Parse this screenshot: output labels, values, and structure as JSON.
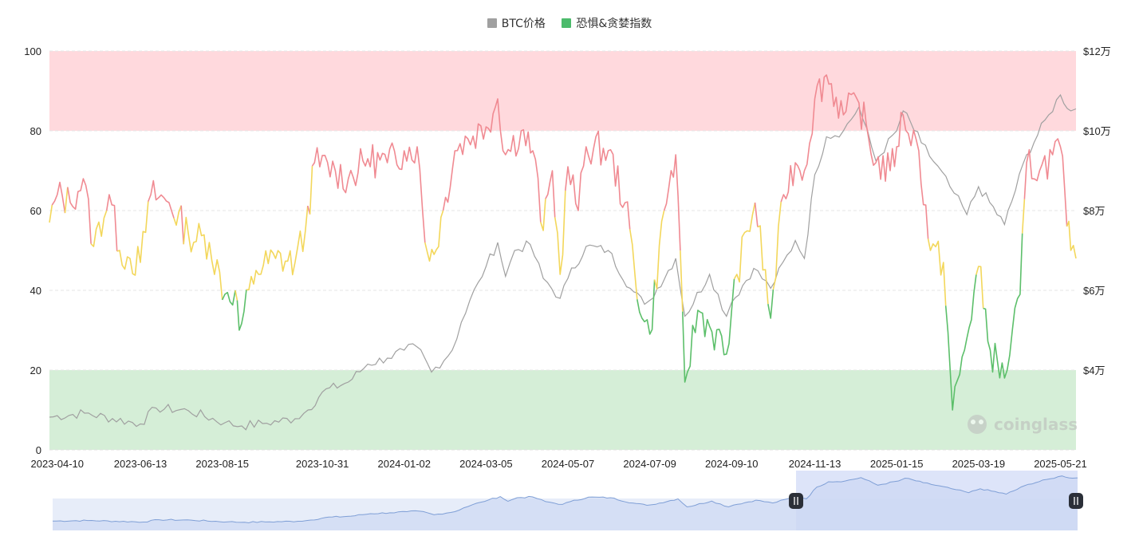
{
  "chart_data": {
    "type": "line",
    "title": "",
    "legend": {
      "placement": "top-center",
      "items": [
        {
          "name": "BTC价格",
          "color": "#a0a0a0"
        },
        {
          "name": "恐惧&贪婪指数",
          "color": "#4cbb6c"
        }
      ]
    },
    "x_tick_labels": [
      "2023-04-10",
      "2023-06-13",
      "2023-08-15",
      "2023-10-31",
      "2024-01-02",
      "2024-03-05",
      "2024-05-07",
      "2024-07-09",
      "2024-09-10",
      "2024-11-13",
      "2025-01-15",
      "2025-03-19",
      "2025-05-21"
    ],
    "x_range": [
      "2023-04-04",
      "2025-06-02"
    ],
    "y_left": {
      "min": 0,
      "max": 100,
      "ticks": [
        "0",
        "20",
        "40",
        "60",
        "80",
        "100"
      ]
    },
    "y_right": {
      "min": 20000,
      "max": 120000,
      "ticks": [
        {
          "value": 40000,
          "label": "$4万"
        },
        {
          "value": 60000,
          "label": "$6万"
        },
        {
          "value": 80000,
          "label": "$8万"
        },
        {
          "value": 100000,
          "label": "$10万"
        },
        {
          "value": 120000,
          "label": "$12万"
        }
      ]
    },
    "zones": [
      {
        "from": 80,
        "to": 100,
        "color": "#ffd9dd"
      },
      {
        "from": 0,
        "to": 20,
        "color": "#d5eed7"
      }
    ],
    "index_colors": {
      "greed": "#f08a92",
      "neutral": "#f3d75b",
      "fear": "#5cbf6a"
    },
    "series": [
      {
        "name": "BTC价格",
        "color": "#a0a0a0",
        "axis": "right",
        "points": [
          [
            "2023-04-04",
            28200
          ],
          [
            "2023-05-01",
            29200
          ],
          [
            "2023-06-13",
            26500
          ],
          [
            "2023-06-25",
            30500
          ],
          [
            "2023-07-20",
            29800
          ],
          [
            "2023-08-17",
            26800
          ],
          [
            "2023-08-30",
            26000
          ],
          [
            "2023-09-15",
            26600
          ],
          [
            "2023-10-10",
            27800
          ],
          [
            "2023-10-20",
            30000
          ],
          [
            "2023-10-31",
            34500
          ],
          [
            "2023-11-20",
            37000
          ],
          [
            "2023-12-05",
            41500
          ],
          [
            "2023-12-20",
            43000
          ],
          [
            "2024-01-02",
            45000
          ],
          [
            "2024-01-12",
            45800
          ],
          [
            "2024-01-23",
            39500
          ],
          [
            "2024-02-08",
            45000
          ],
          [
            "2024-02-15",
            52000
          ],
          [
            "2024-02-28",
            62000
          ],
          [
            "2024-03-05",
            66000
          ],
          [
            "2024-03-14",
            72000
          ],
          [
            "2024-03-20",
            63500
          ],
          [
            "2024-03-27",
            70000
          ],
          [
            "2024-04-08",
            71500
          ],
          [
            "2024-04-18",
            63000
          ],
          [
            "2024-05-01",
            58000
          ],
          [
            "2024-05-07",
            63000
          ],
          [
            "2024-05-21",
            71000
          ],
          [
            "2024-06-07",
            70000
          ],
          [
            "2024-06-24",
            60500
          ],
          [
            "2024-07-05",
            56500
          ],
          [
            "2024-07-09",
            57500
          ],
          [
            "2024-07-29",
            68000
          ],
          [
            "2024-08-05",
            53500
          ],
          [
            "2024-08-24",
            64000
          ],
          [
            "2024-09-06",
            53500
          ],
          [
            "2024-09-10",
            57000
          ],
          [
            "2024-09-27",
            65500
          ],
          [
            "2024-10-10",
            60500
          ],
          [
            "2024-10-29",
            72500
          ],
          [
            "2024-11-05",
            68000
          ],
          [
            "2024-11-13",
            89000
          ],
          [
            "2024-11-22",
            98500
          ],
          [
            "2024-12-05",
            100000
          ],
          [
            "2024-12-17",
            106000
          ],
          [
            "2024-12-30",
            92500
          ],
          [
            "2025-01-15",
            100000
          ],
          [
            "2025-01-20",
            105000
          ],
          [
            "2025-02-03",
            97000
          ],
          [
            "2025-02-25",
            86000
          ],
          [
            "2025-03-10",
            79000
          ],
          [
            "2025-03-19",
            86000
          ],
          [
            "2025-04-08",
            76500
          ],
          [
            "2025-04-25",
            94000
          ],
          [
            "2025-05-12",
            104000
          ],
          [
            "2025-05-21",
            109000
          ],
          [
            "2025-05-29",
            105000
          ],
          [
            "2025-06-02",
            105500
          ]
        ]
      },
      {
        "name": "恐惧&贪婪指数",
        "axis": "left",
        "points": [
          [
            "2023-04-04",
            57
          ],
          [
            "2023-04-10",
            64
          ],
          [
            "2023-04-20",
            62
          ],
          [
            "2023-04-30",
            68
          ],
          [
            "2023-05-08",
            51
          ],
          [
            "2023-05-20",
            64
          ],
          [
            "2023-05-28",
            50
          ],
          [
            "2023-06-05",
            48
          ],
          [
            "2023-06-13",
            47
          ],
          [
            "2023-06-21",
            64
          ],
          [
            "2023-07-05",
            62
          ],
          [
            "2023-07-20",
            54
          ],
          [
            "2023-08-05",
            52
          ],
          [
            "2023-08-17",
            39
          ],
          [
            "2023-08-25",
            40
          ],
          [
            "2023-08-28",
            30
          ],
          [
            "2023-09-10",
            45
          ],
          [
            "2023-09-25",
            48
          ],
          [
            "2023-10-10",
            47
          ],
          [
            "2023-10-18",
            55
          ],
          [
            "2023-10-25",
            72
          ],
          [
            "2023-11-10",
            70
          ],
          [
            "2023-11-20",
            68
          ],
          [
            "2023-12-05",
            73
          ],
          [
            "2023-12-20",
            72
          ],
          [
            "2024-01-02",
            75
          ],
          [
            "2024-01-12",
            76
          ],
          [
            "2024-01-18",
            52
          ],
          [
            "2024-01-25",
            49
          ],
          [
            "2024-02-01",
            60
          ],
          [
            "2024-02-10",
            75
          ],
          [
            "2024-02-20",
            78
          ],
          [
            "2024-03-05",
            81
          ],
          [
            "2024-03-14",
            88
          ],
          [
            "2024-03-20",
            74
          ],
          [
            "2024-04-01",
            80
          ],
          [
            "2024-04-10",
            75
          ],
          [
            "2024-04-18",
            55
          ],
          [
            "2024-04-25",
            70
          ],
          [
            "2024-05-01",
            44
          ],
          [
            "2024-05-07",
            71
          ],
          [
            "2024-05-15",
            60
          ],
          [
            "2024-05-21",
            76
          ],
          [
            "2024-06-07",
            75
          ],
          [
            "2024-06-20",
            62
          ],
          [
            "2024-07-03",
            33
          ],
          [
            "2024-07-09",
            29
          ],
          [
            "2024-07-20",
            60
          ],
          [
            "2024-07-29",
            74
          ],
          [
            "2024-08-05",
            17
          ],
          [
            "2024-08-15",
            35
          ],
          [
            "2024-08-24",
            31
          ],
          [
            "2024-09-06",
            24
          ],
          [
            "2024-09-14",
            44
          ],
          [
            "2024-09-28",
            62
          ],
          [
            "2024-10-10",
            33
          ],
          [
            "2024-10-20",
            64
          ],
          [
            "2024-10-29",
            72
          ],
          [
            "2024-11-05",
            70
          ],
          [
            "2024-11-13",
            88
          ],
          [
            "2024-11-22",
            94
          ],
          [
            "2024-12-05",
            84
          ],
          [
            "2024-12-17",
            87
          ],
          [
            "2024-12-30",
            72
          ],
          [
            "2025-01-10",
            70
          ],
          [
            "2025-01-15",
            76
          ],
          [
            "2025-01-20",
            84
          ],
          [
            "2025-02-01",
            75
          ],
          [
            "2025-02-10",
            50
          ],
          [
            "2025-02-20",
            47
          ],
          [
            "2025-02-27",
            10
          ],
          [
            "2025-03-10",
            28
          ],
          [
            "2025-03-19",
            46
          ],
          [
            "2025-03-28",
            25
          ],
          [
            "2025-04-08",
            18
          ],
          [
            "2025-04-20",
            39
          ],
          [
            "2025-04-25",
            72
          ],
          [
            "2025-05-05",
            70
          ],
          [
            "2025-05-15",
            74
          ],
          [
            "2025-05-21",
            76
          ],
          [
            "2025-05-26",
            56
          ],
          [
            "2025-05-29",
            50
          ],
          [
            "2025-06-02",
            48
          ]
        ]
      }
    ],
    "grid": true,
    "watermark": "coinglass"
  }
}
